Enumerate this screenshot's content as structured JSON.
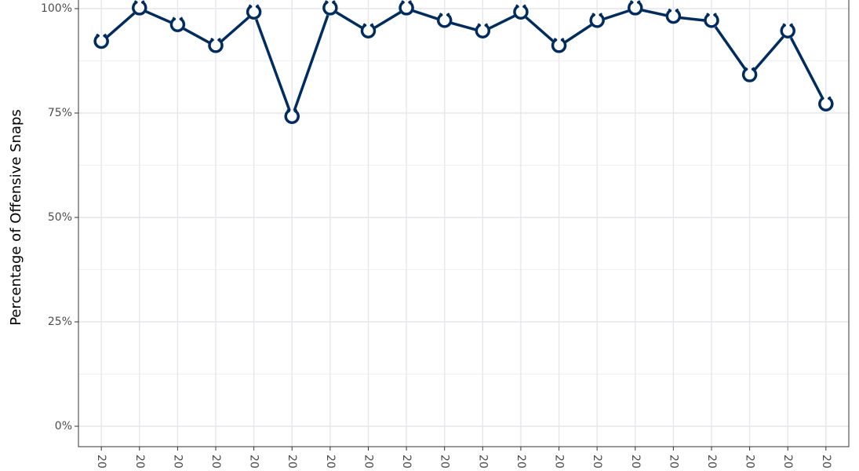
{
  "chart_data": {
    "type": "line",
    "y_label": "Percentage of Offensive Snaps",
    "categories": [
      "20",
      "20",
      "20",
      "20",
      "20",
      "20",
      "20",
      "20",
      "20",
      "20",
      "20",
      "20",
      "20",
      "20",
      "20",
      "20",
      "20",
      "20",
      "20",
      "20"
    ],
    "series": [
      {
        "name": "Offensive Snaps",
        "color": "#002c5f",
        "values": [
          92,
          100,
          96,
          91,
          99,
          74,
          100,
          94.5,
          100,
          97,
          94.5,
          99,
          91,
          97,
          100,
          98,
          97,
          84,
          94.5,
          77
        ]
      }
    ],
    "ylim": [
      -5,
      105
    ],
    "yticks": [
      {
        "value": 0,
        "label": "0%"
      },
      {
        "value": 25,
        "label": "25%"
      },
      {
        "value": 50,
        "label": "50%"
      },
      {
        "value": 75,
        "label": "75%"
      },
      {
        "value": 100,
        "label": "100%"
      }
    ],
    "grid": true,
    "minor_grid": true
  }
}
